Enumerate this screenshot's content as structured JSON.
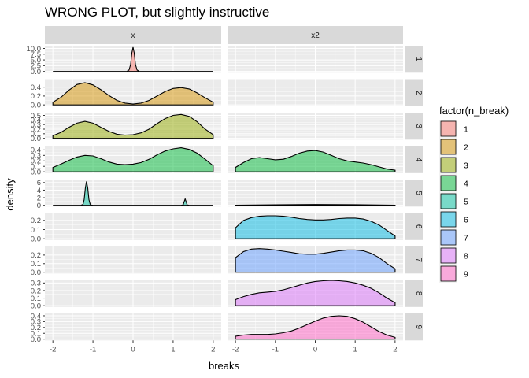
{
  "chart_data": {
    "type": "area",
    "title": "WRONG PLOT, but slightly instructive",
    "xlabel": "breaks",
    "ylabel": "density",
    "xlim": [
      -2,
      2
    ],
    "x_ticks": [
      -2,
      -1,
      0,
      1,
      2
    ],
    "x_tick_labels": [
      "-2",
      "-1",
      "0",
      "1",
      "2"
    ],
    "columns": [
      "x",
      "x2"
    ],
    "legend": {
      "title": "factor(n_break)",
      "position": "right",
      "entries": [
        "1",
        "2",
        "3",
        "4",
        "5",
        "6",
        "7",
        "8",
        "9"
      ]
    },
    "colors": [
      "#F8766D",
      "#D39200",
      "#93AA00",
      "#00BA38",
      "#00C19F",
      "#00B9E3",
      "#619CFF",
      "#DB72FB",
      "#FF61C3"
    ],
    "grid": true,
    "rows": [
      {
        "label": "1",
        "ylim": [
          0,
          11.2
        ],
        "y_ticks": [
          0,
          2.5,
          5,
          7.5,
          10
        ],
        "y_tick_labels": [
          "0.0",
          "2.5",
          "5.0",
          "7.5",
          "10.0"
        ],
        "series": [
          {
            "column": "x",
            "x": [
              -2,
              -0.3,
              -0.15,
              -0.1,
              -0.06,
              -0.03,
              0,
              0.03,
              0.06,
              0.1,
              0.15,
              0.3,
              2
            ],
            "y": [
              0,
              0,
              0.05,
              0.6,
              3.0,
              8.0,
              10.6,
              8.0,
              3.0,
              0.6,
              0.05,
              0,
              0
            ]
          },
          {
            "column": "x2",
            "x": [],
            "y": []
          }
        ]
      },
      {
        "label": "2",
        "ylim": [
          0,
          0.58
        ],
        "y_ticks": [
          0,
          0.2,
          0.4
        ],
        "y_tick_labels": [
          "0.0",
          "0.2",
          "0.4"
        ],
        "series": [
          {
            "column": "x",
            "x": [
              -2,
              -1.8,
              -1.6,
              -1.4,
              -1.2,
              -1.0,
              -0.8,
              -0.6,
              -0.4,
              -0.2,
              0,
              0.2,
              0.4,
              0.6,
              0.8,
              1.0,
              1.2,
              1.4,
              1.6,
              1.8,
              2
            ],
            "y": [
              0.06,
              0.17,
              0.33,
              0.46,
              0.5,
              0.45,
              0.34,
              0.21,
              0.1,
              0.04,
              0.02,
              0.04,
              0.1,
              0.2,
              0.3,
              0.37,
              0.39,
              0.36,
              0.27,
              0.16,
              0.06
            ]
          },
          {
            "column": "x2",
            "x": [],
            "y": []
          }
        ]
      },
      {
        "label": "3",
        "ylim": [
          0,
          0.56
        ],
        "y_ticks": [
          0,
          0.1,
          0.2,
          0.3,
          0.4,
          0.5
        ],
        "y_tick_labels": [
          "0.0",
          "0.1",
          "0.2",
          "0.3",
          "0.4",
          "0.5"
        ],
        "series": [
          {
            "column": "x",
            "x": [
              -2,
              -1.8,
              -1.6,
              -1.4,
              -1.2,
              -1.0,
              -0.8,
              -0.6,
              -0.4,
              -0.2,
              0,
              0.2,
              0.4,
              0.6,
              0.8,
              1.0,
              1.2,
              1.4,
              1.6,
              1.8,
              2
            ],
            "y": [
              0.06,
              0.13,
              0.24,
              0.33,
              0.37,
              0.33,
              0.24,
              0.15,
              0.09,
              0.07,
              0.08,
              0.12,
              0.2,
              0.32,
              0.43,
              0.5,
              0.52,
              0.48,
              0.36,
              0.2,
              0.08
            ]
          },
          {
            "column": "x2",
            "x": [],
            "y": []
          }
        ]
      },
      {
        "label": "4",
        "ylim": [
          0,
          0.47
        ],
        "y_ticks": [
          0,
          0.1,
          0.2,
          0.3,
          0.4
        ],
        "y_tick_labels": [
          "0.0",
          "0.1",
          "0.2",
          "0.3",
          "0.4"
        ],
        "series": [
          {
            "column": "x",
            "x": [
              -2,
              -1.8,
              -1.6,
              -1.4,
              -1.2,
              -1.0,
              -0.8,
              -0.6,
              -0.4,
              -0.2,
              0,
              0.2,
              0.4,
              0.6,
              0.8,
              1.0,
              1.2,
              1.4,
              1.6,
              1.8,
              2
            ],
            "y": [
              0.08,
              0.14,
              0.21,
              0.27,
              0.3,
              0.29,
              0.24,
              0.18,
              0.14,
              0.13,
              0.14,
              0.17,
              0.23,
              0.31,
              0.38,
              0.42,
              0.44,
              0.41,
              0.34,
              0.23,
              0.11
            ]
          },
          {
            "column": "x2",
            "x": [
              -2,
              -1.8,
              -1.6,
              -1.4,
              -1.2,
              -1.0,
              -0.8,
              -0.6,
              -0.4,
              -0.2,
              0,
              0.2,
              0.4,
              0.6,
              0.8,
              1.0,
              1.2,
              1.4,
              1.6,
              1.8,
              2
            ],
            "y": [
              0.08,
              0.17,
              0.24,
              0.26,
              0.24,
              0.22,
              0.23,
              0.28,
              0.34,
              0.38,
              0.39,
              0.36,
              0.3,
              0.24,
              0.2,
              0.18,
              0.16,
              0.13,
              0.09,
              0.05,
              0.03
            ]
          }
        ]
      },
      {
        "label": "5",
        "ylim": [
          0,
          6.8
        ],
        "y_ticks": [
          0,
          2,
          4,
          6
        ],
        "y_tick_labels": [
          "0",
          "2",
          "4",
          "6"
        ],
        "series": [
          {
            "column": "x",
            "x": [
              -2,
              -1.3,
              -1.25,
              -1.22,
              -1.19,
              -1.16,
              -1.13,
              -1.1,
              -1.07,
              -1.04,
              -1.0,
              1.2,
              1.25,
              1.27,
              1.3,
              1.33,
              1.35,
              1.4,
              2
            ],
            "y": [
              0,
              0,
              0.2,
              1.5,
              4.5,
              6.3,
              4.5,
              1.5,
              0.3,
              0.05,
              0,
              0,
              0.1,
              0.8,
              1.7,
              0.8,
              0.1,
              0,
              0
            ]
          },
          {
            "column": "x2",
            "x": [
              -2,
              -1,
              0,
              1,
              2
            ],
            "y": [
              0.02,
              0.12,
              0.2,
              0.16,
              0.04
            ]
          }
        ]
      },
      {
        "label": "6",
        "ylim": [
          0,
          0.28
        ],
        "y_ticks": [
          0,
          0.1,
          0.2
        ],
        "y_tick_labels": [
          "0.0",
          "0.1",
          "0.2"
        ],
        "series": [
          {
            "column": "x",
            "x": [],
            "y": []
          },
          {
            "column": "x2",
            "x": [
              -2,
              -1.8,
              -1.6,
              -1.4,
              -1.2,
              -1.0,
              -0.8,
              -0.6,
              -0.4,
              -0.2,
              0,
              0.2,
              0.4,
              0.6,
              0.8,
              1.0,
              1.2,
              1.4,
              1.6,
              1.8,
              2
            ],
            "y": [
              0.12,
              0.2,
              0.23,
              0.245,
              0.25,
              0.25,
              0.245,
              0.235,
              0.22,
              0.21,
              0.205,
              0.205,
              0.21,
              0.22,
              0.225,
              0.225,
              0.215,
              0.19,
              0.15,
              0.09,
              0.03
            ]
          }
        ]
      },
      {
        "label": "7",
        "ylim": [
          0,
          0.3
        ],
        "y_ticks": [
          0,
          0.1,
          0.2
        ],
        "y_tick_labels": [
          "0.0",
          "0.1",
          "0.2"
        ],
        "series": [
          {
            "column": "x",
            "x": [],
            "y": []
          },
          {
            "column": "x2",
            "x": [
              -2,
              -1.8,
              -1.6,
              -1.4,
              -1.2,
              -1.0,
              -0.8,
              -0.6,
              -0.4,
              -0.2,
              0,
              0.2,
              0.4,
              0.6,
              0.8,
              1.0,
              1.2,
              1.4,
              1.6,
              1.8,
              2
            ],
            "y": [
              0.17,
              0.24,
              0.27,
              0.275,
              0.27,
              0.26,
              0.245,
              0.23,
              0.215,
              0.21,
              0.21,
              0.22,
              0.235,
              0.25,
              0.26,
              0.26,
              0.25,
              0.22,
              0.17,
              0.1,
              0.04
            ]
          }
        ]
      },
      {
        "label": "8",
        "ylim": [
          0,
          0.34
        ],
        "y_ticks": [
          0,
          0.1,
          0.2,
          0.3
        ],
        "y_tick_labels": [
          "0.0",
          "0.1",
          "0.2",
          "0.3"
        ],
        "series": [
          {
            "column": "x",
            "x": [],
            "y": []
          },
          {
            "column": "x2",
            "x": [
              -2,
              -1.8,
              -1.6,
              -1.4,
              -1.2,
              -1.0,
              -0.8,
              -0.6,
              -0.4,
              -0.2,
              0,
              0.2,
              0.4,
              0.6,
              0.8,
              1.0,
              1.2,
              1.4,
              1.6,
              1.8,
              2
            ],
            "y": [
              0.08,
              0.12,
              0.15,
              0.17,
              0.18,
              0.19,
              0.21,
              0.24,
              0.27,
              0.3,
              0.32,
              0.33,
              0.335,
              0.33,
              0.32,
              0.3,
              0.27,
              0.23,
              0.17,
              0.1,
              0.04
            ]
          }
        ]
      },
      {
        "label": "9",
        "ylim": [
          0,
          0.44
        ],
        "y_ticks": [
          0,
          0.1,
          0.2,
          0.3,
          0.4
        ],
        "y_tick_labels": [
          "0.0",
          "0.1",
          "0.2",
          "0.3",
          "0.4"
        ],
        "series": [
          {
            "column": "x",
            "x": [],
            "y": []
          },
          {
            "column": "x2",
            "x": [
              -2,
              -1.8,
              -1.6,
              -1.4,
              -1.2,
              -1.0,
              -0.8,
              -0.6,
              -0.4,
              -0.2,
              0,
              0.2,
              0.4,
              0.6,
              0.8,
              1.0,
              1.2,
              1.4,
              1.6,
              1.8,
              2
            ],
            "y": [
              0.05,
              0.07,
              0.08,
              0.08,
              0.08,
              0.09,
              0.11,
              0.14,
              0.19,
              0.25,
              0.31,
              0.36,
              0.39,
              0.4,
              0.39,
              0.35,
              0.29,
              0.21,
              0.13,
              0.07,
              0.03
            ]
          }
        ]
      }
    ]
  }
}
